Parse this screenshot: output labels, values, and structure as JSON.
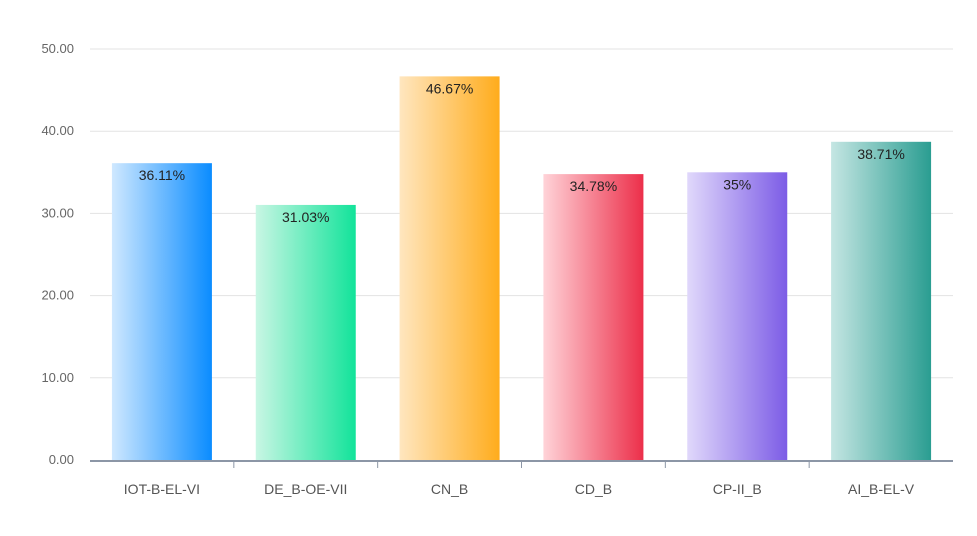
{
  "chart_data": {
    "type": "bar",
    "categories": [
      "IOT-B-EL-VI",
      "DE_B-OE-VII",
      "CN_B",
      "CD_B",
      "CP-II_B",
      "AI_B-EL-V"
    ],
    "values": [
      36.11,
      31.03,
      46.67,
      34.78,
      35.0,
      38.71
    ],
    "data_labels": [
      "36.11%",
      "31.03%",
      "46.67%",
      "34.78%",
      "35%",
      "38.71%"
    ],
    "y_ticks": [
      "0.00",
      "10.00",
      "20.00",
      "30.00",
      "40.00",
      "50.00"
    ],
    "ylim": [
      0,
      50
    ],
    "grid": true,
    "legend": "none",
    "colors": [
      {
        "light": "#cfe8ff",
        "dark": "#0a8cff"
      },
      {
        "light": "#c9f6e4",
        "dark": "#12e39a"
      },
      {
        "light": "#ffe6bf",
        "dark": "#ffac1c"
      },
      {
        "light": "#ffd3d8",
        "dark": "#ec2f4a"
      },
      {
        "light": "#e0d8fb",
        "dark": "#7c5ce6"
      },
      {
        "light": "#c5e6e3",
        "dark": "#2a9d91"
      }
    ],
    "axis_color": "#8c96a6",
    "grid_color": "#e3e3e3"
  }
}
